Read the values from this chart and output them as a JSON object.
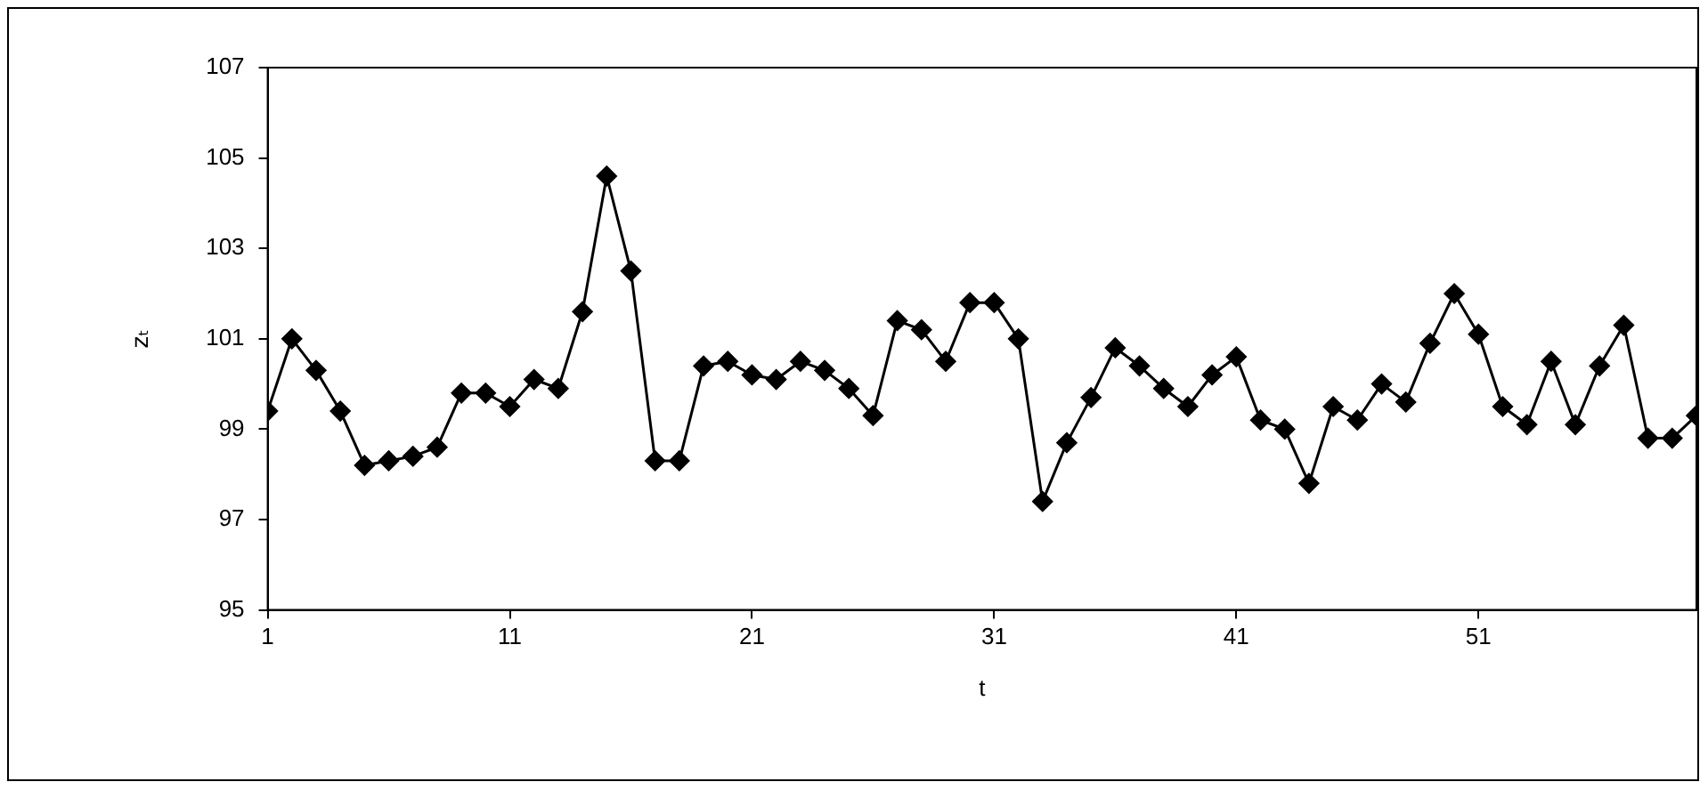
{
  "chart_data": {
    "type": "line",
    "xlabel": "t",
    "ylabel": "zₜ",
    "x": [
      1,
      2,
      3,
      4,
      5,
      6,
      7,
      8,
      9,
      10,
      11,
      12,
      13,
      14,
      15,
      16,
      17,
      18,
      19,
      20,
      21,
      22,
      23,
      24,
      25,
      26,
      27,
      28,
      29,
      30,
      31,
      32,
      33,
      34,
      35,
      36,
      37,
      38,
      39,
      40,
      41,
      42,
      43,
      44,
      45,
      46,
      47,
      48,
      49,
      50,
      51,
      52,
      53,
      54,
      55,
      56,
      57,
      58,
      59,
      60
    ],
    "series": [
      {
        "color": "#000000",
        "values": [
          99.4,
          101.0,
          100.3,
          99.4,
          98.2,
          98.3,
          98.4,
          98.6,
          99.8,
          99.8,
          99.5,
          100.1,
          99.9,
          101.6,
          104.6,
          102.5,
          98.3,
          98.3,
          100.4,
          100.5,
          100.2,
          100.1,
          100.5,
          100.3,
          99.9,
          99.3,
          101.4,
          101.2,
          100.5,
          101.8,
          101.8,
          101.0,
          97.4,
          98.7,
          99.7,
          100.8,
          100.4,
          99.9,
          99.5,
          100.2,
          100.6,
          99.2,
          99.0,
          97.8,
          99.5,
          99.2,
          100.0,
          99.6,
          100.9,
          102.0,
          101.1,
          99.5,
          99.1,
          100.5,
          99.1,
          100.4,
          101.3,
          98.8,
          98.8,
          99.3
        ]
      }
    ],
    "xlim": [
      1,
      60
    ],
    "xticks": [
      1,
      11,
      21,
      31,
      41,
      51
    ],
    "ylim": [
      95,
      107
    ],
    "yticks": [
      95,
      97,
      99,
      101,
      103,
      105,
      107
    ],
    "grid": false,
    "legend": false,
    "marker": "diamond",
    "line_style": "solid"
  }
}
